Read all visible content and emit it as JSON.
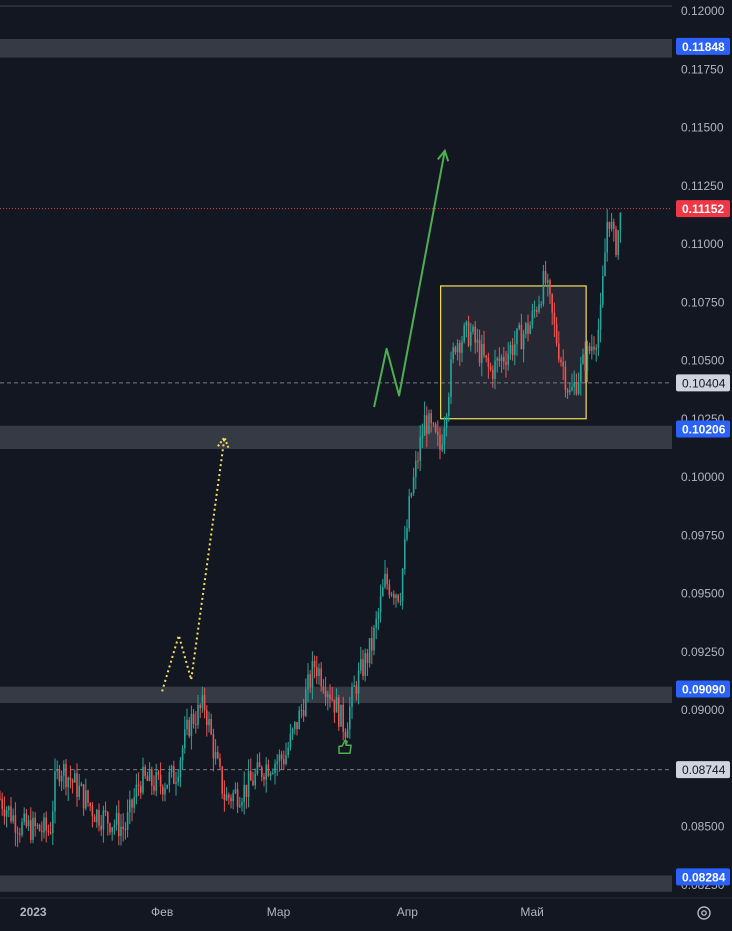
{
  "chart_data": {
    "type": "candlestick",
    "x_axis_labels": [
      "2023",
      "Фев",
      "Мар",
      "Апр",
      "Май"
    ],
    "y_axis_ticks": [
      "0.12000",
      "0.11750",
      "0.11500",
      "0.11250",
      "0.11000",
      "0.10750",
      "0.10500",
      "0.10250",
      "0.10000",
      "0.09750",
      "0.09500",
      "0.09250",
      "0.09000",
      "0.08750",
      "0.08500",
      "0.08250"
    ],
    "ylim": [
      0.0821,
      0.1201
    ],
    "up_color": "#26a69a",
    "down_color": "#ef5350",
    "price_tags": [
      {
        "label": "0.11848",
        "value": 0.11848,
        "color": "#2962ff",
        "kind": "zone"
      },
      {
        "label": "0.11152",
        "value": 0.11152,
        "color": "#f23645",
        "kind": "last"
      },
      {
        "label": "0.10404",
        "value": 0.10404,
        "color": "#d1d4dc",
        "kind": "level"
      },
      {
        "label": "0.10206",
        "value": 0.10206,
        "color": "#2962ff",
        "kind": "zone"
      },
      {
        "label": "0.09090",
        "value": 0.0909,
        "color": "#2962ff",
        "kind": "zone"
      },
      {
        "label": "0.08744",
        "value": 0.08744,
        "color": "#d1d4dc",
        "kind": "level"
      },
      {
        "label": "0.08284",
        "value": 0.08284,
        "color": "#2962ff",
        "kind": "zone"
      }
    ],
    "zones": [
      {
        "from": 0.118,
        "to": 0.1188
      },
      {
        "from": 0.1012,
        "to": 0.1022
      },
      {
        "from": 0.0903,
        "to": 0.091
      },
      {
        "from": 0.0822,
        "to": 0.0829
      }
    ],
    "dashed_levels": [
      0.10404,
      0.08744
    ],
    "range_box": {
      "x_from": "2023-04-09",
      "x_to": "2023-05-14",
      "y_from": 0.1025,
      "y_to": 0.1082,
      "color": "#f5e05a"
    },
    "annotations": [
      {
        "type": "arrow",
        "style": "solid",
        "color": "#4caf50",
        "path": [
          [
            0.103,
            "2023-03-24"
          ],
          [
            0.1055,
            "2023-03-27"
          ],
          [
            0.1035,
            "2023-03-30"
          ],
          [
            0.114,
            "2023-04-10"
          ]
        ]
      },
      {
        "type": "arrow",
        "style": "dotted",
        "color": "#f5e05a",
        "path": [
          [
            0.0908,
            "2023-02-01"
          ],
          [
            0.0932,
            "2023-02-05"
          ],
          [
            0.0913,
            "2023-02-08"
          ],
          [
            0.1017,
            "2023-02-16"
          ]
        ]
      },
      {
        "type": "icon",
        "name": "thumbs-up-icon",
        "color": "#4caf50",
        "at": [
          0.0884,
          "2023-03-17"
        ]
      }
    ]
  }
}
